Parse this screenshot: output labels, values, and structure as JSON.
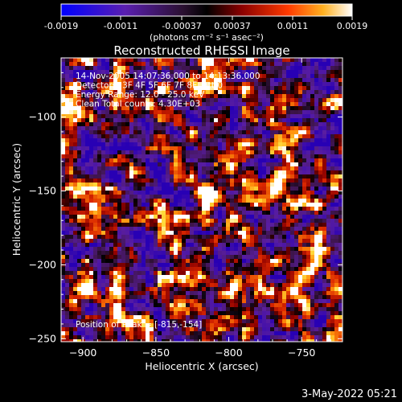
{
  "colorbar": {
    "ticks": [
      "-0.0019",
      "-0.0011",
      "-0.00037",
      "0.00037",
      "0.0011",
      "0.0019"
    ],
    "unit_label": "(photons cm⁻² s⁻¹ asec⁻²)"
  },
  "plot": {
    "title": "Reconstructed RHESSI Image",
    "info_lines": [
      "14-Nov-2005 14:07:36.000 to 14:13:36.000",
      "Detectors: 3F 4F 5F 6F 7F 8F, Att 0",
      "Energy Range: 12.0 - 25.0 keV",
      "Clean     Total counts: 4.30E+03"
    ],
    "peak_label": "Position of Peak = [-815,-154]",
    "footer_date": "3-May-2022 05:21"
  },
  "chart_data": {
    "type": "heatmap",
    "title": "Reconstructed RHESSI Image",
    "xlabel": "Heliocentric X (arcsec)",
    "ylabel": "Heliocentric Y (arcsec)",
    "xlim": [
      -915,
      -722
    ],
    "ylim": [
      -252,
      -60
    ],
    "x_ticks": [
      -900,
      -850,
      -800,
      -750
    ],
    "y_ticks": [
      -250,
      -200,
      -150,
      -100
    ],
    "x_tick_labels": [
      "−900",
      "−850",
      "−800",
      "−750"
    ],
    "y_tick_labels": [
      "−250",
      "−200",
      "−150",
      "−100"
    ],
    "colorbar_range": [
      -0.0019,
      0.0019
    ],
    "peak": [
      -815,
      -154
    ],
    "colors": {
      "scale": [
        "#0000ff",
        "#5a1fb0",
        "#7a2e8e",
        "#000000",
        "#7a0000",
        "#d42000",
        "#ff6a00",
        "#ffd23a",
        "#ffffff"
      ]
    }
  }
}
